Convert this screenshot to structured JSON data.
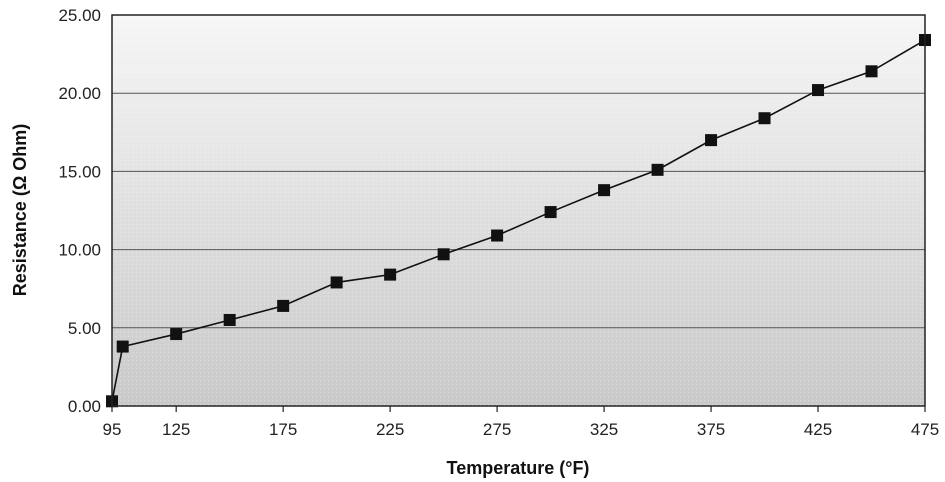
{
  "chart_data": {
    "type": "line",
    "title": "",
    "xlabel": "Temperature (°F)",
    "ylabel": "Resistance (Ω Ohm)",
    "xlim": [
      95,
      475
    ],
    "ylim": [
      0,
      25
    ],
    "x_ticks": [
      95,
      125,
      175,
      225,
      275,
      325,
      375,
      425,
      475
    ],
    "x_tick_labels": [
      "95",
      "125",
      "175",
      "225",
      "275",
      "325",
      "375",
      "425",
      "475"
    ],
    "y_ticks": [
      0,
      5,
      10,
      15,
      20,
      25
    ],
    "y_tick_labels": [
      "0.00",
      "5.00",
      "10.00",
      "15.00",
      "20.00",
      "25.00"
    ],
    "grid": "horizontal",
    "marker": "square",
    "series": [
      {
        "x": [
          95,
          100,
          125,
          150,
          175,
          200,
          225,
          250,
          275,
          300,
          325,
          350,
          375,
          400,
          425,
          450,
          475
        ],
        "y": [
          0.3,
          3.8,
          4.6,
          5.5,
          6.4,
          7.9,
          8.4,
          9.7,
          10.9,
          12.4,
          13.8,
          15.1,
          17.0,
          18.4,
          20.2,
          21.4,
          23.4
        ]
      }
    ],
    "colors": {
      "line": "#111111",
      "marker": "#111111",
      "grid": "#555555",
      "plot_top": "#f6f6f6",
      "plot_bottom": "#c9c9c9"
    }
  }
}
